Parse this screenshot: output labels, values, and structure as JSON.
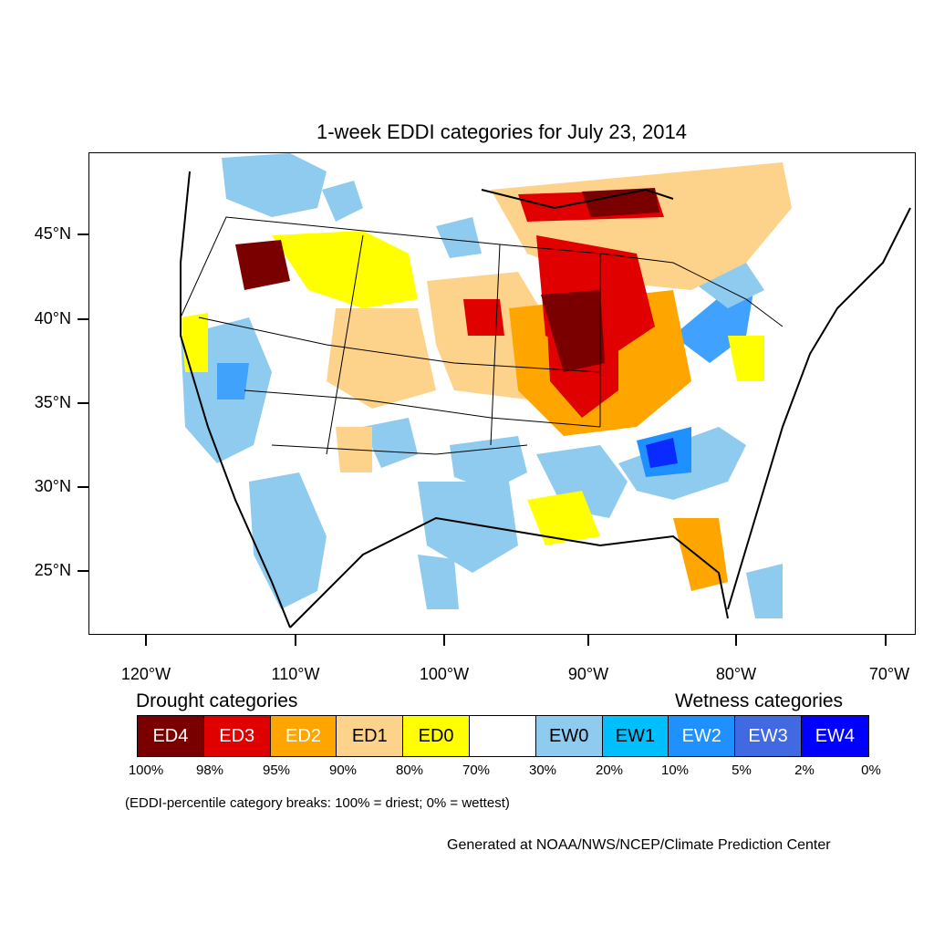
{
  "title": "1-week EDDI categories for July 23, 2014",
  "y_axis": [
    "45°N",
    "40°N",
    "35°N",
    "30°N",
    "25°N"
  ],
  "x_axis": [
    "120°W",
    "110°W",
    "100°W",
    "90°W",
    "80°W",
    "70°W"
  ],
  "legend": {
    "drought_heading": "Drought categories",
    "wetness_heading": "Wetness categories",
    "categories": [
      {
        "label": "ED4",
        "color": "#7a0000",
        "text_color": "#ffffff"
      },
      {
        "label": "ED3",
        "color": "#e00000",
        "text_color": "#ffffff"
      },
      {
        "label": "ED2",
        "color": "#ffa500",
        "text_color": "#ffffff"
      },
      {
        "label": "ED1",
        "color": "#fdd38c",
        "text_color": "#000000"
      },
      {
        "label": "ED0",
        "color": "#ffff00",
        "text_color": "#000000"
      },
      {
        "label": "",
        "color": "#ffffff",
        "text_color": "#000000"
      },
      {
        "label": "EW0",
        "color": "#8fcbee",
        "text_color": "#000000"
      },
      {
        "label": "EW1",
        "color": "#00bfff",
        "text_color": "#000000"
      },
      {
        "label": "EW2",
        "color": "#1e90ff",
        "text_color": "#ffffff"
      },
      {
        "label": "EW3",
        "color": "#4169e1",
        "text_color": "#ffffff"
      },
      {
        "label": "EW4",
        "color": "#0000ff",
        "text_color": "#ffffff"
      }
    ],
    "breaks": [
      "100%",
      "98%",
      "95%",
      "90%",
      "80%",
      "70%",
      "30%",
      "20%",
      "10%",
      "5%",
      "2%",
      "0%"
    ]
  },
  "note": "(EDDI-percentile category breaks: 100% = driest; 0% = wettest)",
  "credit": "Generated at NOAA/NWS/NCEP/Climate Prediction Center"
}
